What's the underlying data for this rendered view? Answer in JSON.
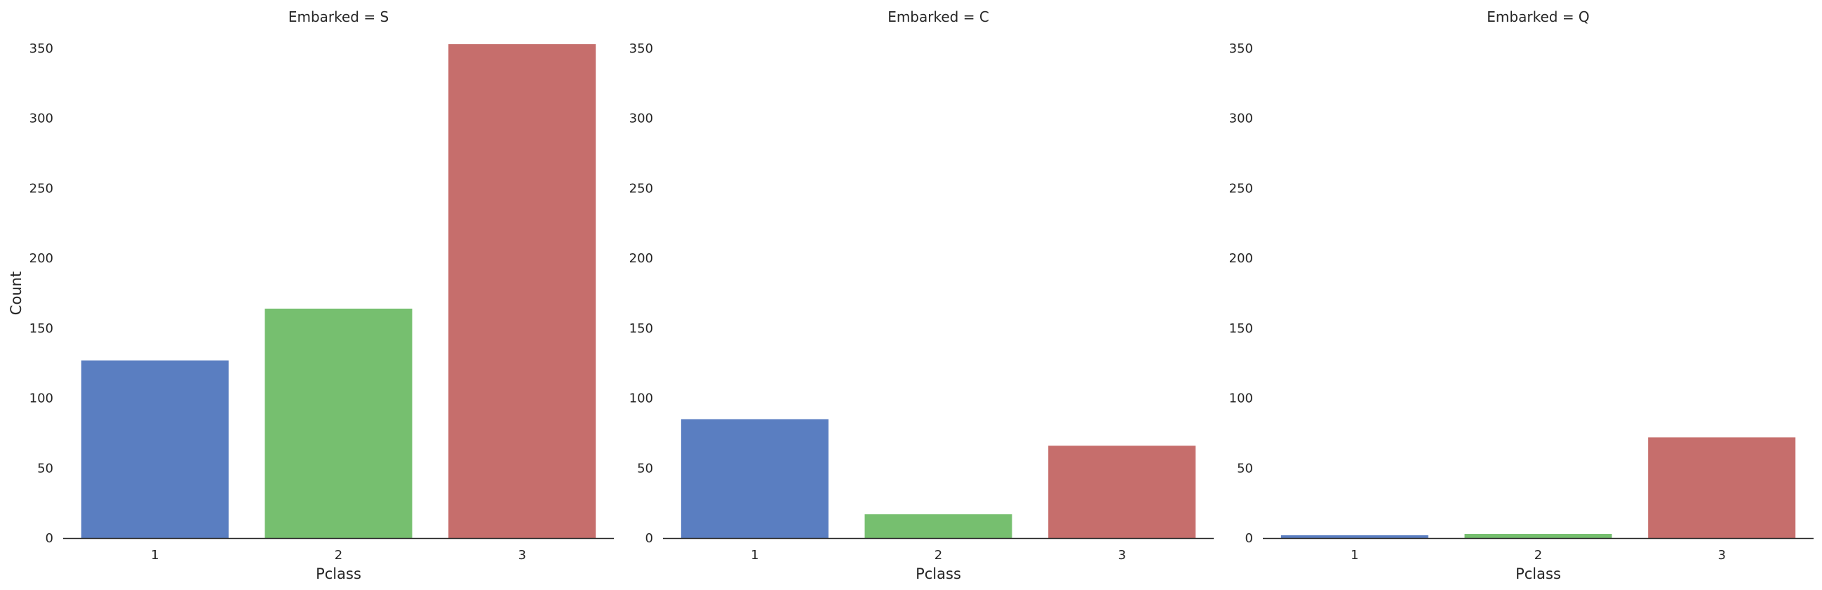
{
  "chart_data": {
    "type": "bar",
    "layout": "facet-columns",
    "categories": [
      "1",
      "2",
      "3"
    ],
    "xlabel": "Pclass",
    "ylabel": "Count",
    "ylim": [
      0,
      350
    ],
    "yticks": [
      0,
      50,
      100,
      150,
      200,
      250,
      300,
      350
    ],
    "grid": false,
    "colors": [
      "#5a7ec1",
      "#76bf6f",
      "#c66e6c"
    ],
    "panels": [
      {
        "title": "Embarked = S",
        "values": [
          127,
          164,
          353
        ]
      },
      {
        "title": "Embarked = C",
        "values": [
          85,
          17,
          66
        ]
      },
      {
        "title": "Embarked = Q",
        "values": [
          2,
          3,
          72
        ]
      }
    ]
  }
}
